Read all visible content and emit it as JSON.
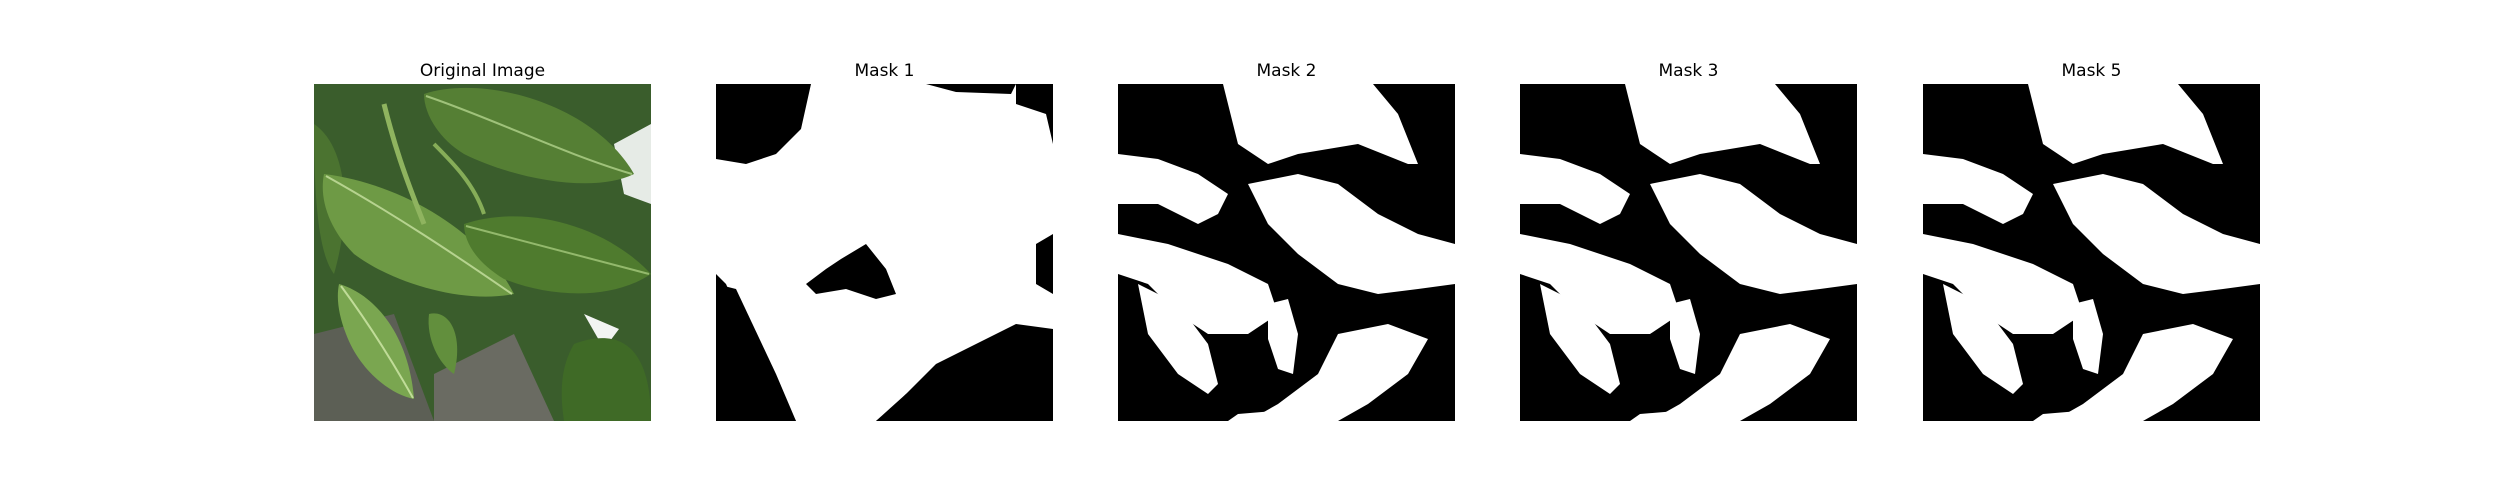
{
  "panels": [
    {
      "title": "Original Image",
      "kind": "photo"
    },
    {
      "title": "Mask 1",
      "kind": "mask",
      "variant": "mask-1"
    },
    {
      "title": "Mask 2",
      "kind": "mask",
      "variant": "mask-2"
    },
    {
      "title": "Mask 3",
      "kind": "mask",
      "variant": "mask-3"
    },
    {
      "title": "Mask 5",
      "kind": "mask",
      "variant": "mask-5"
    }
  ],
  "colors": {
    "background": "#ffffff",
    "mask_fg": "#ffffff",
    "mask_bg": "#000000",
    "leaf_dark": "#2f5a22",
    "leaf_mid": "#5d8f3a",
    "leaf_light": "#8fb86a"
  }
}
